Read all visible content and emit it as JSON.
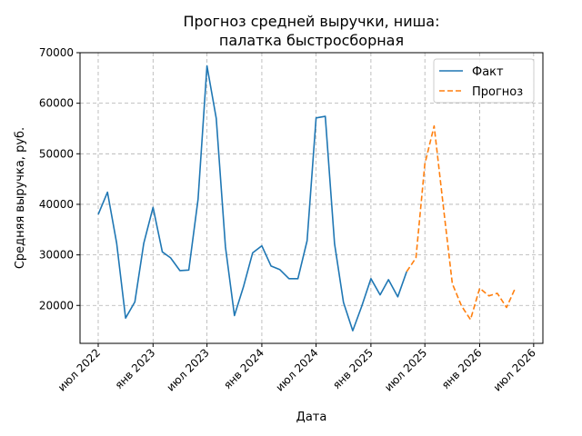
{
  "chart_data": {
    "type": "line",
    "title": "Прогноз средней выручки, ниша:",
    "subtitle": "палатка быстросборная",
    "xlabel": "Дата",
    "ylabel": "Средняя выручка, руб.",
    "ylim": [
      12500,
      70000
    ],
    "xlim": [
      "2022-05-01",
      "2026-08-01"
    ],
    "yticks": [
      20000,
      30000,
      40000,
      50000,
      60000,
      70000
    ],
    "xticks": [
      {
        "date": "2022-07-01",
        "label": "июл 2022"
      },
      {
        "date": "2023-01-01",
        "label": "янв 2023"
      },
      {
        "date": "2023-07-01",
        "label": "июл 2023"
      },
      {
        "date": "2024-01-01",
        "label": "янв 2024"
      },
      {
        "date": "2024-07-01",
        "label": "июл 2024"
      },
      {
        "date": "2025-01-01",
        "label": "янв 2025"
      },
      {
        "date": "2025-07-01",
        "label": "июл 2025"
      },
      {
        "date": "2026-01-01",
        "label": "янв 2026"
      },
      {
        "date": "2026-07-01",
        "label": "июл 2026"
      }
    ],
    "grid": true,
    "legend_position": "top-right",
    "series": [
      {
        "name": "Факт",
        "color": "#1f77b4",
        "style": "solid",
        "points": [
          [
            "2022-07-01",
            38000
          ],
          [
            "2022-08-01",
            42400
          ],
          [
            "2022-09-01",
            32300
          ],
          [
            "2022-10-01",
            17500
          ],
          [
            "2022-11-01",
            20700
          ],
          [
            "2022-12-01",
            32300
          ],
          [
            "2023-01-01",
            39400
          ],
          [
            "2023-02-01",
            30600
          ],
          [
            "2023-03-01",
            29400
          ],
          [
            "2023-04-01",
            26900
          ],
          [
            "2023-05-01",
            27000
          ],
          [
            "2023-06-01",
            41000
          ],
          [
            "2023-07-01",
            67400
          ],
          [
            "2023-08-01",
            57000
          ],
          [
            "2023-09-01",
            31600
          ],
          [
            "2023-10-01",
            18000
          ],
          [
            "2023-11-01",
            23800
          ],
          [
            "2023-12-01",
            30400
          ],
          [
            "2024-01-01",
            31800
          ],
          [
            "2024-02-01",
            27800
          ],
          [
            "2024-03-01",
            27100
          ],
          [
            "2024-04-01",
            25300
          ],
          [
            "2024-05-01",
            25300
          ],
          [
            "2024-06-01",
            32800
          ],
          [
            "2024-07-01",
            57100
          ],
          [
            "2024-08-01",
            57400
          ],
          [
            "2024-09-01",
            32200
          ],
          [
            "2024-10-01",
            20600
          ],
          [
            "2024-11-01",
            15000
          ],
          [
            "2024-12-01",
            19800
          ],
          [
            "2025-01-01",
            25300
          ],
          [
            "2025-02-01",
            22100
          ],
          [
            "2025-03-01",
            25100
          ],
          [
            "2025-04-01",
            21700
          ],
          [
            "2025-05-01",
            26700
          ]
        ]
      },
      {
        "name": "Прогноз",
        "color": "#ff7f0e",
        "style": "dashed",
        "points": [
          [
            "2025-05-01",
            26700
          ],
          [
            "2025-06-01",
            29400
          ],
          [
            "2025-07-01",
            48000
          ],
          [
            "2025-08-01",
            55500
          ],
          [
            "2025-09-01",
            39600
          ],
          [
            "2025-10-01",
            24300
          ],
          [
            "2025-11-01",
            19900
          ],
          [
            "2025-12-01",
            17200
          ],
          [
            "2026-01-01",
            23400
          ],
          [
            "2026-02-01",
            21900
          ],
          [
            "2026-03-01",
            22400
          ],
          [
            "2026-04-01",
            19600
          ],
          [
            "2026-05-01",
            23500
          ]
        ]
      }
    ]
  }
}
